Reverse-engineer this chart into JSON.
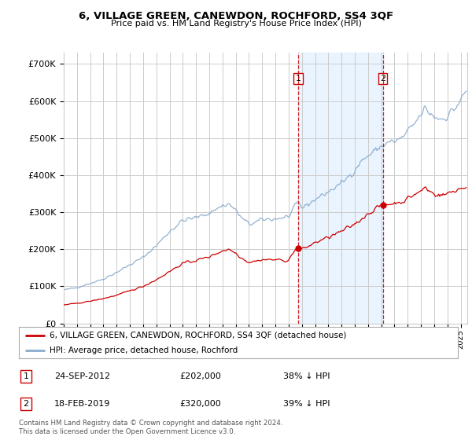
{
  "title": "6, VILLAGE GREEN, CANEWDON, ROCHFORD, SS4 3QF",
  "subtitle": "Price paid vs. HM Land Registry's House Price Index (HPI)",
  "legend_label_red": "6, VILLAGE GREEN, CANEWDON, ROCHFORD, SS4 3QF (detached house)",
  "legend_label_blue": "HPI: Average price, detached house, Rochford",
  "transaction1_label": "1",
  "transaction1_date": "24-SEP-2012",
  "transaction1_price": "£202,000",
  "transaction1_pct": "38% ↓ HPI",
  "transaction2_label": "2",
  "transaction2_date": "18-FEB-2019",
  "transaction2_price": "£320,000",
  "transaction2_pct": "39% ↓ HPI",
  "footer": "Contains HM Land Registry data © Crown copyright and database right 2024.\nThis data is licensed under the Open Government Licence v3.0.",
  "vline1_x": 2012.73,
  "vline2_x": 2019.12,
  "dot1_x": 2012.73,
  "dot1_y": 202000,
  "dot2_x": 2019.12,
  "dot2_y": 320000,
  "ylim": [
    0,
    730000
  ],
  "xlim_start": 1995.0,
  "xlim_end": 2025.5,
  "red_color": "#cc0000",
  "blue_color": "#88aacc",
  "vline_color": "#cc0000",
  "grid_color": "#cccccc",
  "background_color": "#ffffff",
  "plot_bg_color": "#ffffff",
  "highlight_bg_color": "#ddeeff"
}
